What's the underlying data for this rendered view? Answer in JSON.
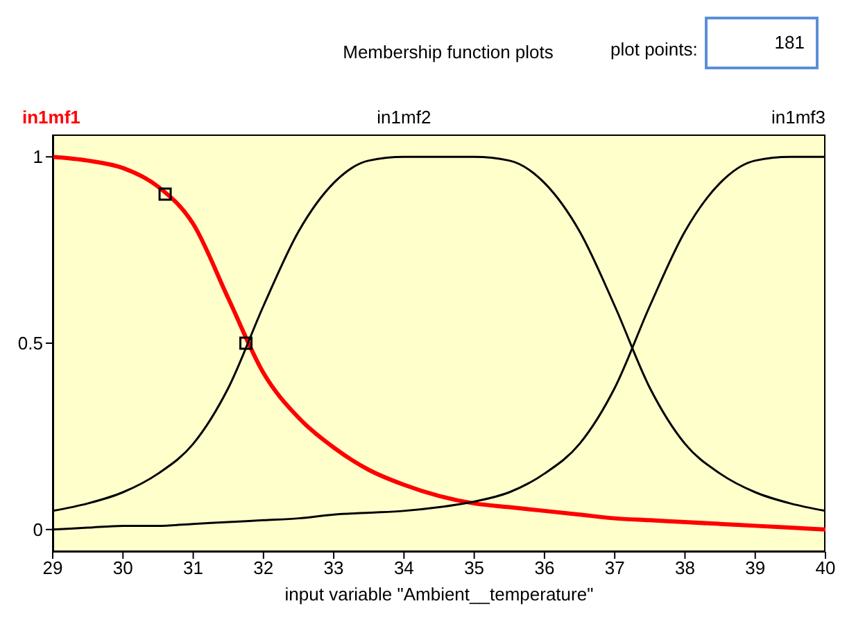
{
  "chart_data": {
    "type": "line",
    "title": "Membership function plots",
    "xlabel": "input variable \"Ambient__temperature\"",
    "annotations": [
      "plot points:",
      "181"
    ],
    "xlim": [
      29,
      40
    ],
    "xticks": [
      29,
      30,
      31,
      32,
      33,
      34,
      35,
      36,
      37,
      38,
      39,
      40
    ],
    "ylim": [
      -0.06,
      1.06
    ],
    "yticks": [
      0,
      0.5,
      1
    ],
    "grid": false,
    "legend": false,
    "marker": "none",
    "line_style": "solid",
    "x": [
      29,
      29.5,
      30,
      30.5,
      31,
      31.5,
      32,
      32.5,
      33,
      33.5,
      34,
      34.5,
      35,
      35.5,
      36,
      36.5,
      37,
      37.5,
      38,
      38.5,
      39,
      39.5,
      40
    ],
    "series": [
      {
        "name": "in1mf1",
        "color": "#ff0000",
        "values": [
          1,
          0.99,
          0.97,
          0.92,
          0.82,
          0.62,
          0.42,
          0.3,
          0.22,
          0.16,
          0.12,
          0.09,
          0.07,
          0.06,
          0.05,
          0.04,
          0.03,
          0.025,
          0.02,
          0.015,
          0.01,
          0.005,
          0
        ]
      },
      {
        "name": "in1mf2",
        "color": "#000000",
        "values": [
          0.05,
          0.07,
          0.1,
          0.15,
          0.23,
          0.38,
          0.6,
          0.8,
          0.93,
          0.99,
          1,
          1,
          1,
          0.99,
          0.93,
          0.8,
          0.6,
          0.38,
          0.23,
          0.15,
          0.1,
          0.07,
          0.05
        ]
      },
      {
        "name": "in1mf3",
        "color": "#000000",
        "values": [
          0,
          0.005,
          0.01,
          0.01,
          0.015,
          0.02,
          0.025,
          0.03,
          0.04,
          0.045,
          0.05,
          0.06,
          0.075,
          0.1,
          0.15,
          0.23,
          0.38,
          0.6,
          0.8,
          0.93,
          0.99,
          1,
          1
        ]
      },
      {
        "type": "scatter",
        "marker": "square",
        "color": "#000000",
        "x": [
          30.6,
          31.75
        ],
        "values": [
          0.9,
          0.5
        ]
      }
    ]
  }
}
